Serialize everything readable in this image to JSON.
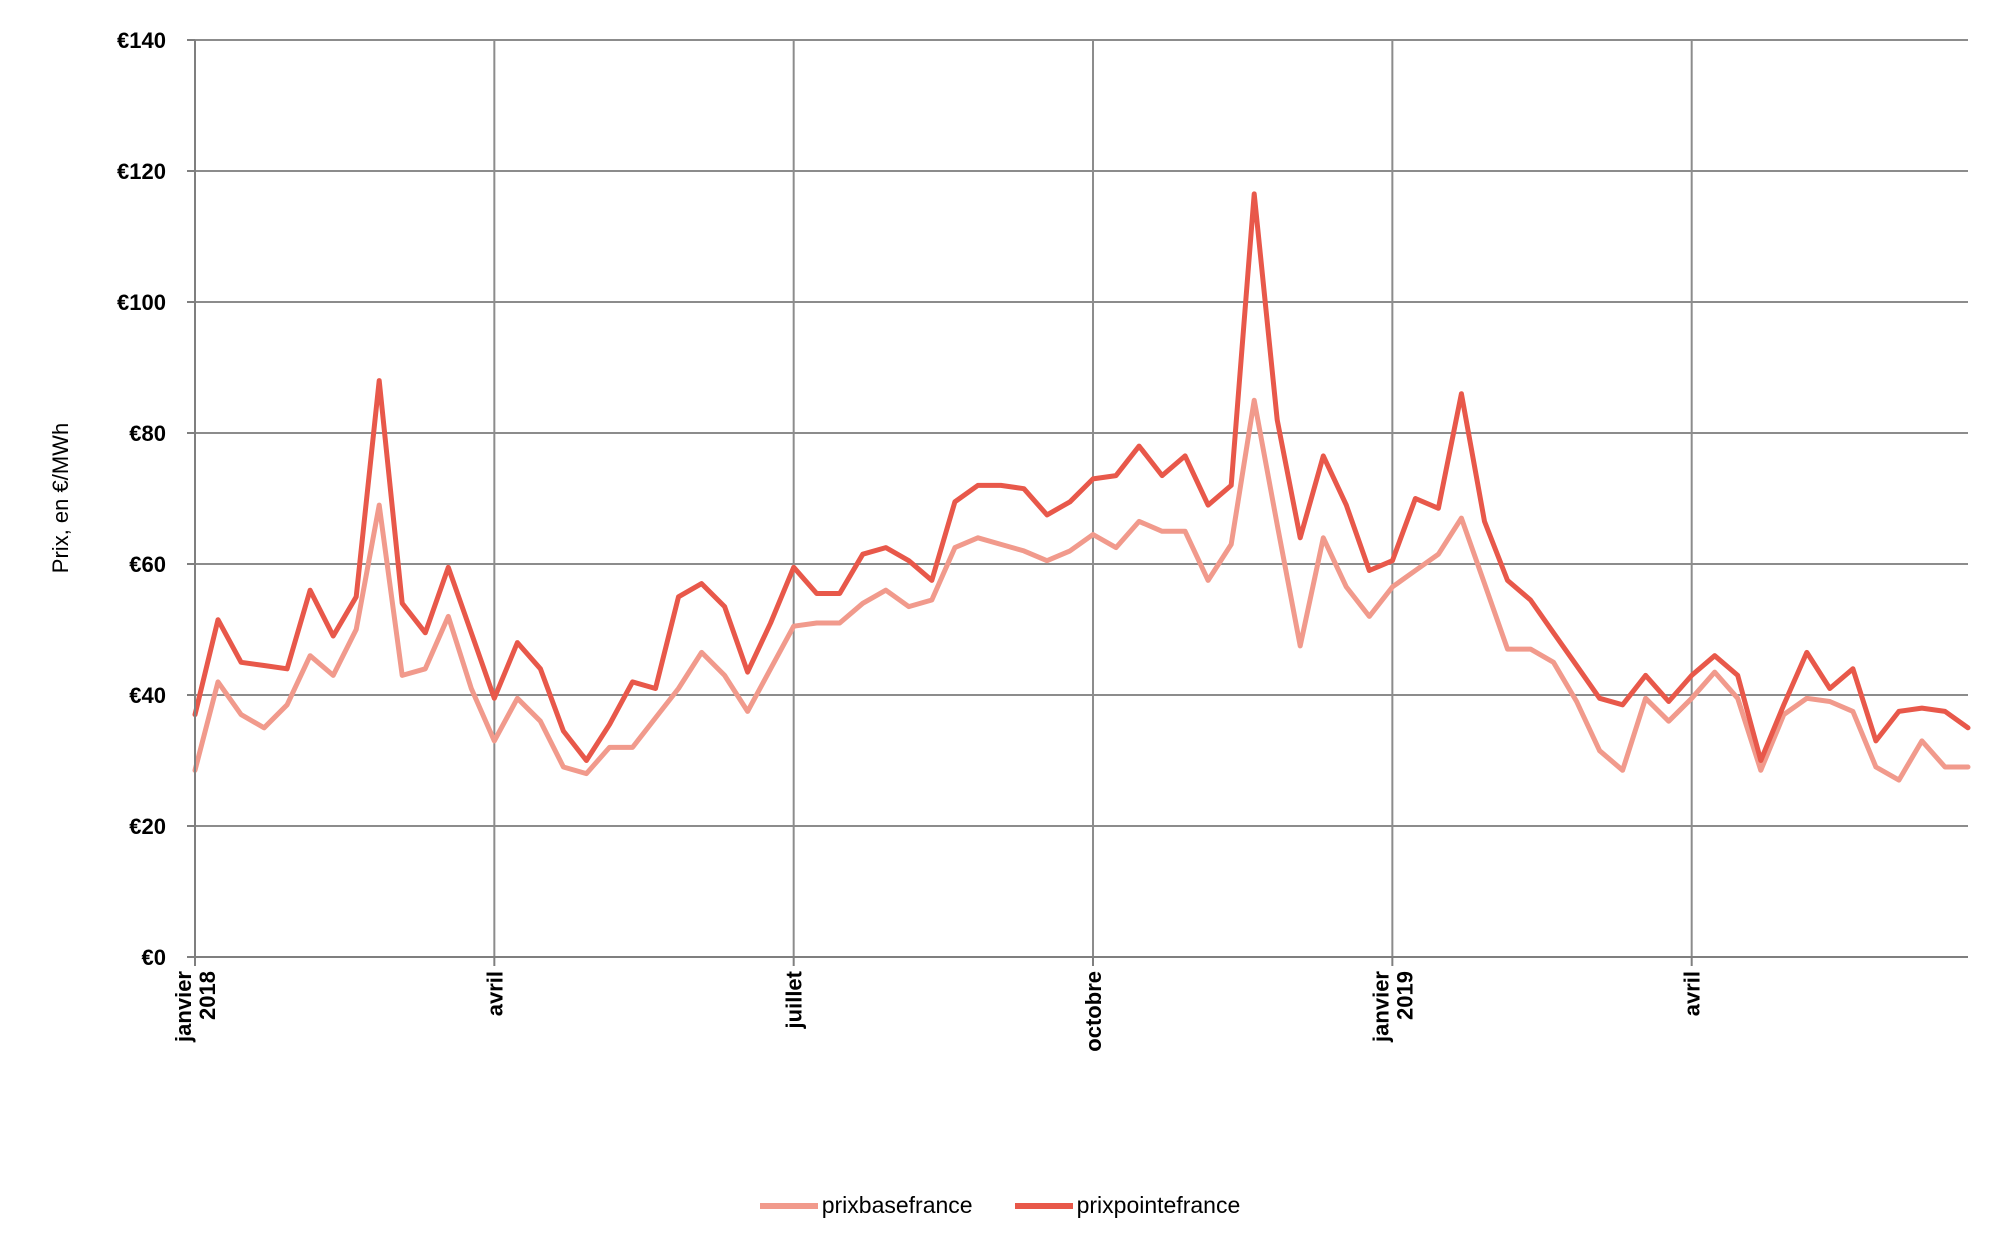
{
  "chart_data": {
    "type": "line",
    "ylabel": "Prix, en €/MWh",
    "ylim": [
      0,
      140
    ],
    "y_ticks": [
      "€0",
      "€20",
      "€40",
      "€60",
      "€80",
      "€100",
      "€120",
      "€140"
    ],
    "x_ticks": [
      {
        "index": 0,
        "lines": [
          "janvier",
          "2018"
        ]
      },
      {
        "index": 13,
        "lines": [
          "avril"
        ]
      },
      {
        "index": 26,
        "lines": [
          "juillet"
        ]
      },
      {
        "index": 39,
        "lines": [
          "octobre"
        ]
      },
      {
        "index": 52,
        "lines": [
          "janvier",
          "2019"
        ]
      },
      {
        "index": 65,
        "lines": [
          "avril"
        ]
      }
    ],
    "grid": true,
    "legend_position": "bottom",
    "series": [
      {
        "name": "prixbasefrance",
        "color": "#f19a8c",
        "values": [
          28.5,
          42,
          37,
          35,
          38.5,
          46,
          43,
          50,
          69,
          43,
          44,
          52,
          41,
          33,
          39.5,
          36,
          29,
          28,
          32,
          32,
          36.5,
          41,
          46.5,
          43,
          37.5,
          44,
          50.5,
          51,
          51,
          54,
          56,
          53.5,
          54.5,
          62.5,
          64,
          63,
          62,
          60.5,
          62,
          64.5,
          62.5,
          66.5,
          65,
          65,
          57.5,
          63,
          85,
          66,
          47.5,
          64,
          56.5,
          52,
          56.5,
          59,
          61.5,
          67,
          57,
          47,
          47,
          45,
          39,
          31.5,
          28.5,
          39.5,
          36,
          39.5,
          43.5,
          39.5,
          28.5,
          37,
          39.5,
          39,
          37.5,
          29,
          27,
          33,
          29,
          29
        ]
      },
      {
        "name": "prixpointefrance",
        "color": "#e8584a",
        "values": [
          37,
          51.5,
          45,
          44.5,
          44,
          56,
          49,
          55,
          88,
          54,
          49.5,
          59.5,
          49.5,
          39.5,
          48,
          44,
          34.5,
          30,
          35.5,
          42,
          41,
          55,
          57,
          53.5,
          43.5,
          51,
          59.5,
          55.5,
          55.5,
          61.5,
          62.5,
          60.5,
          57.5,
          69.5,
          72,
          72,
          71.5,
          67.5,
          69.5,
          73,
          73.5,
          78,
          73.5,
          76.5,
          69,
          72,
          116.5,
          82,
          64,
          76.5,
          69,
          59,
          60.5,
          70,
          68.5,
          86,
          66.5,
          57.5,
          54.5,
          49.5,
          44.5,
          39.5,
          38.5,
          43,
          39,
          43,
          46,
          43,
          30,
          38.5,
          46.5,
          41,
          44,
          33,
          37.5,
          38,
          37.5,
          35
        ]
      }
    ]
  }
}
